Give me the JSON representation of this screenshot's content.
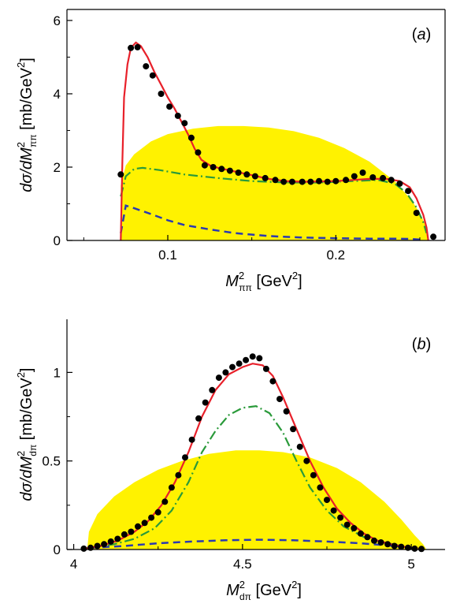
{
  "colors": {
    "phase_space": "#fff200",
    "full_fit": "#e8202a",
    "dashdot": "#2a9a3a",
    "dashed": "#2b3ab0",
    "points": "#000000"
  },
  "chart_data": [
    {
      "type": "scatter",
      "panel_label_open": "(",
      "panel_label_letter": "a",
      "panel_label_close": ")",
      "xlabel": {
        "main": "M",
        "sup": "2",
        "sub": "ππ",
        "unit_open": " [GeV",
        "unit_sup": "2",
        "unit_close": "]"
      },
      "ylabel": {
        "prefix": "dσ/dM",
        "sup": "2",
        "sub": "ππ",
        "unit_open": "  [mb/GeV",
        "unit_sup": "2",
        "unit_close": "]"
      },
      "xlim": [
        0.04,
        0.265
      ],
      "ylim": [
        0,
        6.3
      ],
      "xticks": [
        {
          "v": 0.1,
          "label": "0.1"
        },
        {
          "v": 0.2,
          "label": "0.2"
        }
      ],
      "xminor": [
        0.05,
        0.15,
        0.25
      ],
      "yticks": [
        {
          "v": 0,
          "label": "0"
        },
        {
          "v": 2,
          "label": "2"
        },
        {
          "v": 4,
          "label": "4"
        },
        {
          "v": 6,
          "label": "6"
        }
      ],
      "yminor": [
        1,
        3,
        5
      ],
      "points": [
        [
          0.072,
          1.8
        ],
        [
          0.078,
          5.25
        ],
        [
          0.082,
          5.27
        ],
        [
          0.087,
          4.75
        ],
        [
          0.091,
          4.5
        ],
        [
          0.096,
          4.0
        ],
        [
          0.101,
          3.65
        ],
        [
          0.106,
          3.4
        ],
        [
          0.11,
          3.2
        ],
        [
          0.114,
          2.8
        ],
        [
          0.118,
          2.4
        ],
        [
          0.122,
          2.05
        ],
        [
          0.127,
          2.0
        ],
        [
          0.132,
          1.95
        ],
        [
          0.137,
          1.9
        ],
        [
          0.142,
          1.85
        ],
        [
          0.147,
          1.8
        ],
        [
          0.152,
          1.75
        ],
        [
          0.158,
          1.7
        ],
        [
          0.164,
          1.65
        ],
        [
          0.169,
          1.6
        ],
        [
          0.174,
          1.6
        ],
        [
          0.18,
          1.6
        ],
        [
          0.185,
          1.6
        ],
        [
          0.19,
          1.62
        ],
        [
          0.195,
          1.6
        ],
        [
          0.2,
          1.62
        ],
        [
          0.206,
          1.65
        ],
        [
          0.211,
          1.75
        ],
        [
          0.216,
          1.85
        ],
        [
          0.222,
          1.72
        ],
        [
          0.228,
          1.7
        ],
        [
          0.233,
          1.65
        ],
        [
          0.238,
          1.55
        ],
        [
          0.243,
          1.35
        ],
        [
          0.248,
          0.75
        ],
        [
          0.258,
          0.1
        ]
      ],
      "phase_space": [
        [
          0.072,
          0
        ],
        [
          0.072,
          1.5
        ],
        [
          0.075,
          2.05
        ],
        [
          0.08,
          2.35
        ],
        [
          0.09,
          2.7
        ],
        [
          0.1,
          2.9
        ],
        [
          0.115,
          3.05
        ],
        [
          0.13,
          3.12
        ],
        [
          0.145,
          3.12
        ],
        [
          0.16,
          3.08
        ],
        [
          0.175,
          2.98
        ],
        [
          0.19,
          2.8
        ],
        [
          0.205,
          2.52
        ],
        [
          0.22,
          2.15
        ],
        [
          0.235,
          1.62
        ],
        [
          0.245,
          1.1
        ],
        [
          0.25,
          0.75
        ],
        [
          0.254,
          0.35
        ],
        [
          0.255,
          0
        ]
      ],
      "full_fit": [
        [
          0.072,
          0
        ],
        [
          0.073,
          2.2
        ],
        [
          0.074,
          3.9
        ],
        [
          0.076,
          4.8
        ],
        [
          0.078,
          5.25
        ],
        [
          0.081,
          5.4
        ],
        [
          0.084,
          5.3
        ],
        [
          0.088,
          5.0
        ],
        [
          0.092,
          4.6
        ],
        [
          0.096,
          4.25
        ],
        [
          0.1,
          3.9
        ],
        [
          0.104,
          3.6
        ],
        [
          0.108,
          3.25
        ],
        [
          0.112,
          2.9
        ],
        [
          0.116,
          2.5
        ],
        [
          0.12,
          2.2
        ],
        [
          0.125,
          2.05
        ],
        [
          0.13,
          1.98
        ],
        [
          0.14,
          1.88
        ],
        [
          0.15,
          1.78
        ],
        [
          0.16,
          1.68
        ],
        [
          0.17,
          1.62
        ],
        [
          0.18,
          1.6
        ],
        [
          0.19,
          1.61
        ],
        [
          0.2,
          1.62
        ],
        [
          0.21,
          1.65
        ],
        [
          0.22,
          1.68
        ],
        [
          0.23,
          1.68
        ],
        [
          0.238,
          1.62
        ],
        [
          0.244,
          1.45
        ],
        [
          0.248,
          1.15
        ],
        [
          0.252,
          0.7
        ],
        [
          0.254,
          0.35
        ],
        [
          0.255,
          0
        ]
      ],
      "dashdot": [
        [
          0.072,
          1.2
        ],
        [
          0.075,
          1.75
        ],
        [
          0.08,
          1.95
        ],
        [
          0.085,
          1.98
        ],
        [
          0.095,
          1.92
        ],
        [
          0.11,
          1.8
        ],
        [
          0.13,
          1.7
        ],
        [
          0.15,
          1.62
        ],
        [
          0.17,
          1.58
        ],
        [
          0.19,
          1.58
        ],
        [
          0.21,
          1.62
        ],
        [
          0.225,
          1.65
        ],
        [
          0.235,
          1.55
        ],
        [
          0.242,
          1.3
        ],
        [
          0.248,
          0.9
        ],
        [
          0.252,
          0.5
        ],
        [
          0.254,
          0.2
        ]
      ],
      "dashed": [
        [
          0.072,
          0.2
        ],
        [
          0.075,
          0.95
        ],
        [
          0.08,
          0.88
        ],
        [
          0.09,
          0.72
        ],
        [
          0.1,
          0.55
        ],
        [
          0.11,
          0.42
        ],
        [
          0.125,
          0.3
        ],
        [
          0.14,
          0.2
        ],
        [
          0.16,
          0.12
        ],
        [
          0.18,
          0.08
        ],
        [
          0.2,
          0.06
        ],
        [
          0.22,
          0.05
        ],
        [
          0.235,
          0.05
        ],
        [
          0.245,
          0.04
        ],
        [
          0.252,
          0.02
        ]
      ]
    },
    {
      "type": "scatter",
      "panel_label_open": "(",
      "panel_label_letter": "b",
      "panel_label_close": ")",
      "xlabel": {
        "main": "M",
        "sup": "2",
        "sub": "dπ",
        "unit_open": " [GeV",
        "unit_sup": "2",
        "unit_close": "]"
      },
      "ylabel": {
        "prefix": "dσ/dM",
        "sup": "2",
        "sub": "dπ",
        "unit_open": "  [mb/GeV",
        "unit_sup": "2",
        "unit_close": "]"
      },
      "xlim": [
        3.98,
        5.1
      ],
      "ylim": [
        0,
        1.3
      ],
      "xticks": [
        {
          "v": 4,
          "label": "4"
        },
        {
          "v": 4.5,
          "label": "4.5"
        },
        {
          "v": 5,
          "label": "5"
        }
      ],
      "xminor": [
        4.25,
        4.75
      ],
      "yticks": [
        {
          "v": 0,
          "label": "0"
        },
        {
          "v": 0.5,
          "label": "0.5"
        },
        {
          "v": 1,
          "label": "1"
        }
      ],
      "yminor": [
        0.25,
        0.75
      ],
      "points": [
        [
          4.03,
          0.005
        ],
        [
          4.05,
          0.01
        ],
        [
          4.07,
          0.02
        ],
        [
          4.09,
          0.03
        ],
        [
          4.11,
          0.045
        ],
        [
          4.13,
          0.06
        ],
        [
          4.15,
          0.085
        ],
        [
          4.17,
          0.1
        ],
        [
          4.19,
          0.13
        ],
        [
          4.21,
          0.15
        ],
        [
          4.23,
          0.18
        ],
        [
          4.25,
          0.21
        ],
        [
          4.27,
          0.27
        ],
        [
          4.29,
          0.35
        ],
        [
          4.31,
          0.42
        ],
        [
          4.33,
          0.52
        ],
        [
          4.35,
          0.62
        ],
        [
          4.37,
          0.74
        ],
        [
          4.39,
          0.83
        ],
        [
          4.41,
          0.9
        ],
        [
          4.43,
          0.97
        ],
        [
          4.45,
          1.0
        ],
        [
          4.47,
          1.03
        ],
        [
          4.49,
          1.05
        ],
        [
          4.51,
          1.07
        ],
        [
          4.53,
          1.09
        ],
        [
          4.55,
          1.08
        ],
        [
          4.57,
          1.02
        ],
        [
          4.59,
          0.95
        ],
        [
          4.61,
          0.85
        ],
        [
          4.63,
          0.78
        ],
        [
          4.65,
          0.68
        ],
        [
          4.67,
          0.58
        ],
        [
          4.69,
          0.5
        ],
        [
          4.71,
          0.42
        ],
        [
          4.73,
          0.35
        ],
        [
          4.75,
          0.28
        ],
        [
          4.77,
          0.22
        ],
        [
          4.79,
          0.18
        ],
        [
          4.81,
          0.14
        ],
        [
          4.83,
          0.12
        ],
        [
          4.85,
          0.09
        ],
        [
          4.87,
          0.07
        ],
        [
          4.89,
          0.05
        ],
        [
          4.91,
          0.04
        ],
        [
          4.93,
          0.03
        ],
        [
          4.95,
          0.02
        ],
        [
          4.97,
          0.015
        ],
        [
          4.99,
          0.01
        ],
        [
          5.01,
          0.005
        ],
        [
          5.03,
          0.003
        ]
      ],
      "phase_space": [
        [
          4.04,
          0
        ],
        [
          4.045,
          0.1
        ],
        [
          4.07,
          0.2
        ],
        [
          4.12,
          0.3
        ],
        [
          4.18,
          0.38
        ],
        [
          4.25,
          0.45
        ],
        [
          4.32,
          0.5
        ],
        [
          4.4,
          0.54
        ],
        [
          4.48,
          0.56
        ],
        [
          4.55,
          0.56
        ],
        [
          4.62,
          0.55
        ],
        [
          4.7,
          0.52
        ],
        [
          4.78,
          0.46
        ],
        [
          4.85,
          0.38
        ],
        [
          4.92,
          0.27
        ],
        [
          4.97,
          0.17
        ],
        [
          5.01,
          0.08
        ],
        [
          5.035,
          0.03
        ],
        [
          5.045,
          0
        ]
      ],
      "full_fit": [
        [
          4.03,
          0.005
        ],
        [
          4.08,
          0.02
        ],
        [
          4.13,
          0.05
        ],
        [
          4.18,
          0.1
        ],
        [
          4.22,
          0.16
        ],
        [
          4.26,
          0.25
        ],
        [
          4.3,
          0.38
        ],
        [
          4.34,
          0.55
        ],
        [
          4.38,
          0.75
        ],
        [
          4.42,
          0.9
        ],
        [
          4.46,
          0.99
        ],
        [
          4.5,
          1.03
        ],
        [
          4.53,
          1.05
        ],
        [
          4.56,
          1.04
        ],
        [
          4.59,
          0.98
        ],
        [
          4.62,
          0.86
        ],
        [
          4.66,
          0.68
        ],
        [
          4.7,
          0.5
        ],
        [
          4.74,
          0.35
        ],
        [
          4.78,
          0.23
        ],
        [
          4.82,
          0.15
        ],
        [
          4.86,
          0.09
        ],
        [
          4.9,
          0.05
        ],
        [
          4.94,
          0.03
        ],
        [
          4.98,
          0.015
        ],
        [
          5.02,
          0.005
        ]
      ],
      "dashdot": [
        [
          4.05,
          0.01
        ],
        [
          4.12,
          0.03
        ],
        [
          4.18,
          0.06
        ],
        [
          4.24,
          0.12
        ],
        [
          4.29,
          0.22
        ],
        [
          4.34,
          0.38
        ],
        [
          4.38,
          0.55
        ],
        [
          4.42,
          0.67
        ],
        [
          4.46,
          0.76
        ],
        [
          4.5,
          0.8
        ],
        [
          4.54,
          0.81
        ],
        [
          4.58,
          0.77
        ],
        [
          4.62,
          0.66
        ],
        [
          4.66,
          0.5
        ],
        [
          4.7,
          0.35
        ],
        [
          4.75,
          0.22
        ],
        [
          4.8,
          0.13
        ],
        [
          4.86,
          0.07
        ],
        [
          4.92,
          0.04
        ],
        [
          4.97,
          0.02
        ]
      ],
      "dashed": [
        [
          4.05,
          0.01
        ],
        [
          4.15,
          0.02
        ],
        [
          4.25,
          0.035
        ],
        [
          4.35,
          0.045
        ],
        [
          4.45,
          0.052
        ],
        [
          4.55,
          0.055
        ],
        [
          4.65,
          0.052
        ],
        [
          4.75,
          0.045
        ],
        [
          4.85,
          0.035
        ],
        [
          4.95,
          0.02
        ],
        [
          5.0,
          0.01
        ]
      ]
    }
  ]
}
